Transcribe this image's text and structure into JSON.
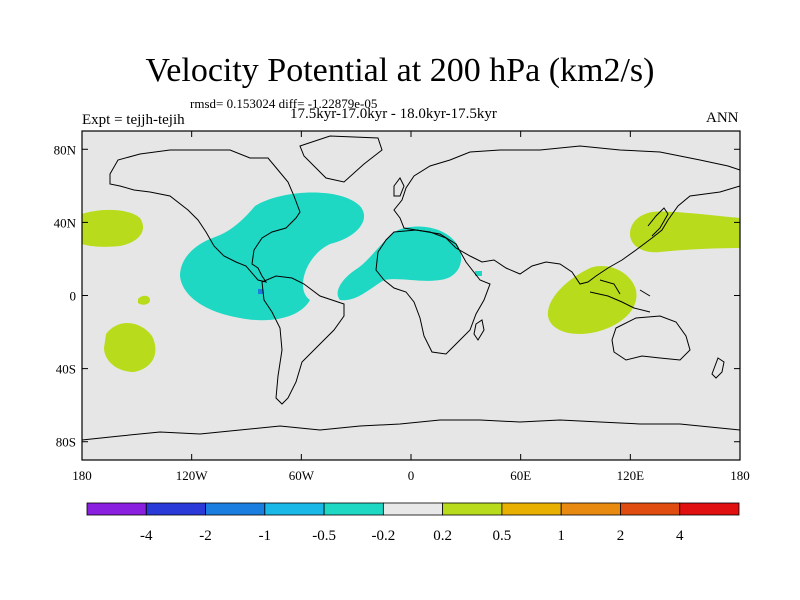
{
  "title": "Velocity Potential at 200 hPa (km2/s)",
  "stats": "rmsd= 0.153024 diff= -1.22879e-05",
  "period": "17.5kyr-17.0kyr - 18.0kyr-17.5kyr",
  "experiment": "Expt = tejjh-tejih",
  "season": "ANN",
  "map": {
    "lon_range": [
      -180,
      180
    ],
    "lat_range": [
      -90,
      90
    ],
    "background": "#e6e6e6",
    "lat_ticks": [
      {
        "label": "80N",
        "lat": 80
      },
      {
        "label": "40N",
        "lat": 40
      },
      {
        "label": "0",
        "lat": 0
      },
      {
        "label": "40S",
        "lat": -40
      },
      {
        "label": "80S",
        "lat": -80
      }
    ],
    "lon_ticks": [
      {
        "label": "180",
        "lon": -180
      },
      {
        "label": "120W",
        "lon": -120
      },
      {
        "label": "60W",
        "lon": -60
      },
      {
        "label": "0",
        "lon": 0
      },
      {
        "label": "60E",
        "lon": 60
      },
      {
        "label": "120E",
        "lon": 120
      },
      {
        "label": "180",
        "lon": 180
      }
    ]
  },
  "colorbar": {
    "colors": [
      "#8a1fe0",
      "#2a3ad8",
      "#1a7ee0",
      "#1ab8e6",
      "#1ed8c4",
      "#e8e8e8",
      "#b8dc1c",
      "#e8b000",
      "#e88a10",
      "#e04c10",
      "#e01010"
    ],
    "labels": [
      "-4",
      "-2",
      "-1",
      "-0.5",
      "-0.2",
      "0.2",
      "0.5",
      "1",
      "2",
      "4"
    ]
  }
}
